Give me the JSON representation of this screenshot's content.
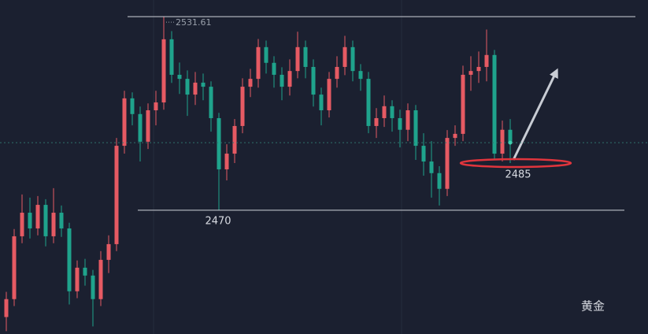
{
  "chart_data": {
    "type": "candlestick",
    "ylim": [
      2430.6,
      2536.9
    ],
    "up_color": "#e65a63",
    "down_color": "#1fa38c",
    "open": [
      2436.0,
      2441.7,
      2461.7,
      2469.2,
      2464.2,
      2471.7,
      2461.7,
      2469.2,
      2464.2,
      2444.2,
      2451.7,
      2449.2,
      2441.7,
      2454.2,
      2459.2,
      2490.5,
      2505.6,
      2500.6,
      2491.8,
      2501.8,
      2504.3,
      2524.4,
      2513.1,
      2511.8,
      2506.8,
      2510.6,
      2509.3,
      2499.3,
      2483.0,
      2488.0,
      2496.8,
      2509.3,
      2511.8,
      2521.9,
      2516.9,
      2513.1,
      2509.3,
      2514.3,
      2521.9,
      2515.6,
      2506.8,
      2501.8,
      2511.8,
      2515.6,
      2521.9,
      2514.3,
      2511.8,
      2496.8,
      2499.3,
      2503.1,
      2499.3,
      2495.6,
      2501.8,
      2490.5,
      2485.5,
      2481.8,
      2476.8,
      2493.0,
      2494.3,
      2513.1,
      2514.3,
      2515.6,
      2519.4,
      2488.0,
      2495.6
    ],
    "high": [
      2444.0,
      2464.0,
      2475.0,
      2474.0,
      2474.5,
      2473.5,
      2477.0,
      2471.5,
      2466.0,
      2454.0,
      2454.5,
      2451.0,
      2457.0,
      2462.0,
      2493.0,
      2508.0,
      2507.5,
      2503.0,
      2504.0,
      2508.0,
      2531.61,
      2527.0,
      2517.0,
      2514.5,
      2514.0,
      2513.5,
      2511.0,
      2501.0,
      2491.0,
      2499.0,
      2512.0,
      2515.0,
      2524.5,
      2524.0,
      2519.0,
      2515.5,
      2518.0,
      2526.8,
      2524.0,
      2518.0,
      2509.0,
      2514.0,
      2519.0,
      2525.5,
      2524.0,
      2516.5,
      2514.0,
      2502.5,
      2506.5,
      2505.0,
      2502.0,
      2504.0,
      2503.5,
      2494.5,
      2492.0,
      2484.0,
      2495.5,
      2497.0,
      2516.0,
      2519.0,
      2520.5,
      2527.5,
      2521.0,
      2498.5,
      2499.0
    ],
    "low": [
      2431.5,
      2439.5,
      2459.5,
      2461.0,
      2462.0,
      2458.5,
      2459.5,
      2461.5,
      2440.0,
      2442.0,
      2446.0,
      2433.0,
      2439.5,
      2450.0,
      2457.0,
      2488.0,
      2497.0,
      2485.5,
      2489.5,
      2497.0,
      2502.0,
      2510.5,
      2507.0,
      2500.0,
      2503.5,
      2505.0,
      2495.0,
      2470.0,
      2479.5,
      2485.0,
      2494.5,
      2506.0,
      2509.0,
      2513.5,
      2509.0,
      2505.0,
      2506.5,
      2512.0,
      2512.0,
      2503.0,
      2497.0,
      2499.5,
      2509.0,
      2513.0,
      2511.0,
      2508.0,
      2494.5,
      2493.0,
      2496.5,
      2495.0,
      2490.0,
      2492.0,
      2486.0,
      2481.0,
      2474.0,
      2471.5,
      2474.5,
      2490.5,
      2492.0,
      2508.0,
      2510.5,
      2511.0,
      2486.0,
      2485.5,
      2485.0
    ],
    "close": [
      2441.7,
      2461.7,
      2469.2,
      2464.2,
      2471.7,
      2461.7,
      2469.2,
      2464.2,
      2444.2,
      2451.7,
      2449.2,
      2441.7,
      2454.2,
      2459.2,
      2490.5,
      2505.6,
      2500.6,
      2491.8,
      2501.8,
      2504.3,
      2524.4,
      2513.1,
      2511.8,
      2506.8,
      2510.6,
      2509.3,
      2499.3,
      2483.0,
      2488.0,
      2496.8,
      2509.3,
      2511.8,
      2521.9,
      2516.9,
      2513.1,
      2509.3,
      2514.3,
      2521.9,
      2515.6,
      2506.8,
      2501.8,
      2511.8,
      2515.6,
      2521.9,
      2514.3,
      2511.8,
      2496.8,
      2499.3,
      2503.1,
      2499.3,
      2495.6,
      2501.8,
      2490.5,
      2485.5,
      2481.8,
      2476.8,
      2493.0,
      2494.3,
      2513.1,
      2514.3,
      2515.6,
      2519.4,
      2488.0,
      2495.6,
      2491.5
    ],
    "levels": [
      2531.61,
      2470
    ],
    "support": 2485,
    "watermark": "黄金"
  }
}
